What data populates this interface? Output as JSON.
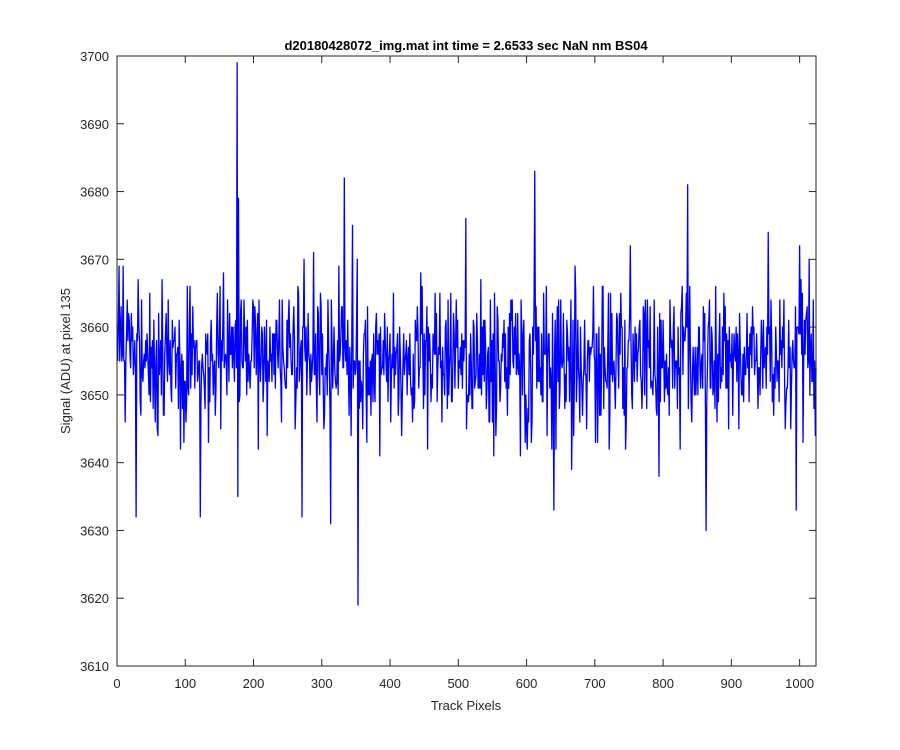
{
  "chart_data": {
    "type": "line",
    "title": "d20180428072_img.mat int time = 2.6533 sec  NaN nm BS04",
    "xlabel": "Track Pixels",
    "ylabel": "Signal (ADU) at pixel 135",
    "xlim": [
      0,
      1024
    ],
    "ylim": [
      3610,
      3700
    ],
    "xticks": [
      0,
      100,
      200,
      300,
      400,
      500,
      600,
      700,
      800,
      900,
      1000
    ],
    "yticks": [
      3610,
      3620,
      3630,
      3640,
      3650,
      3660,
      3670,
      3680,
      3690,
      3700
    ],
    "grid": false,
    "series": [
      {
        "color": "#0000ff",
        "x_start": 1,
        "x_step": 1,
        "mean": 3655,
        "noise_std": 5.5,
        "n_points": 1024,
        "extremes": [
          {
            "x": 176,
            "y": 3699
          },
          {
            "x": 178,
            "y": 3679
          },
          {
            "x": 177,
            "y": 3635
          },
          {
            "x": 28,
            "y": 3632
          },
          {
            "x": 122,
            "y": 3632
          },
          {
            "x": 271,
            "y": 3632
          },
          {
            "x": 313,
            "y": 3631
          },
          {
            "x": 333,
            "y": 3682
          },
          {
            "x": 345,
            "y": 3675
          },
          {
            "x": 353,
            "y": 3619
          },
          {
            "x": 511,
            "y": 3676
          },
          {
            "x": 612,
            "y": 3683
          },
          {
            "x": 640,
            "y": 3633
          },
          {
            "x": 836,
            "y": 3681
          },
          {
            "x": 863,
            "y": 3630
          },
          {
            "x": 954,
            "y": 3674
          },
          {
            "x": 1000,
            "y": 3672
          },
          {
            "x": 995,
            "y": 3633
          }
        ]
      }
    ]
  }
}
